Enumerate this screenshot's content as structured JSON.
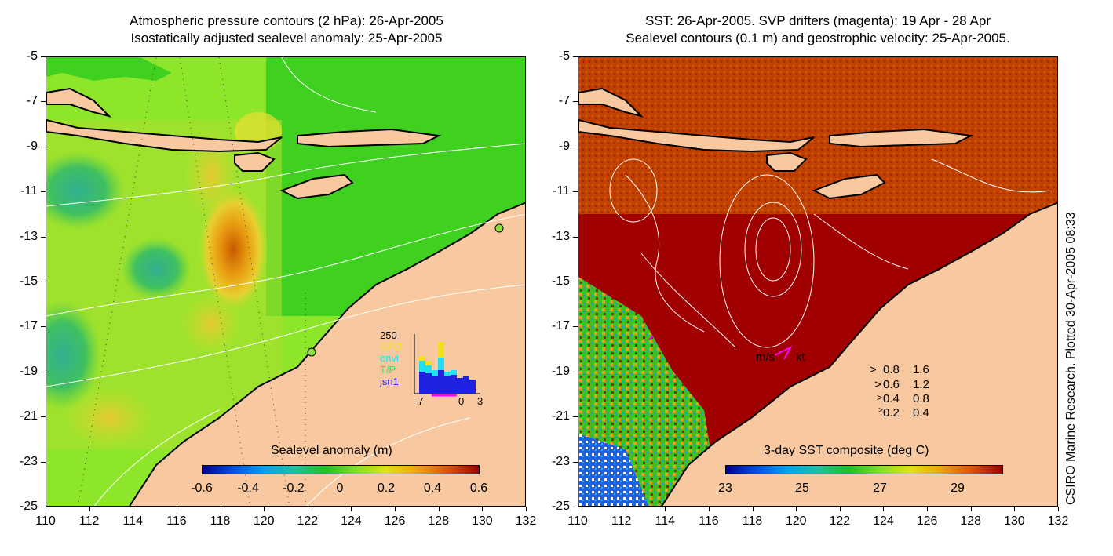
{
  "left": {
    "title_line1": "Atmospheric pressure contours (2 hPa): 26-Apr-2005",
    "title_line2": "Isostatically adjusted sealevel anomaly: 25-Apr-2005",
    "colorbar_title": "Sealevel anomaly (m)",
    "colorbar_labels": [
      "-0.6",
      "-0.4",
      "-0.2",
      "0",
      "0.2",
      "0.4",
      "0.6"
    ],
    "inset": {
      "ymax_label": "250",
      "legend": [
        {
          "label": "GFO",
          "color": "#f0e020"
        },
        {
          "label": "envi",
          "color": "#20e0f0"
        },
        {
          "label": "T/P",
          "color": "#20f060"
        },
        {
          "label": "jsn1",
          "color": "#2020e0"
        }
      ],
      "x_labels": [
        "-7",
        "0",
        "3"
      ]
    }
  },
  "right": {
    "title_line1": "SST: 26-Apr-2005. SVP drifters (magenta): 19 Apr - 28 Apr",
    "title_line2": "Sealevel contours (0.1 m) and geostrophic velocity: 25-Apr-2005.",
    "colorbar_title": "3-day SST composite (deg C)",
    "colorbar_labels": [
      "23",
      "25",
      "27",
      "29"
    ],
    "velocity_legend": {
      "header_ms": "m/s",
      "header_kt": "kt",
      "rows": [
        {
          "ms": "0.8",
          "kt": "1.6"
        },
        {
          "ms": "0.6",
          "kt": "1.2"
        },
        {
          "ms": "0.4",
          "kt": "0.8"
        },
        {
          "ms": "0.2",
          "kt": "0.4"
        }
      ]
    }
  },
  "axes": {
    "y_labels": [
      "-5",
      "-7",
      "-9",
      "-11",
      "-13",
      "-15",
      "-17",
      "-19",
      "-21",
      "-23",
      "-25"
    ],
    "x_labels": [
      "110",
      "112",
      "114",
      "116",
      "118",
      "120",
      "122",
      "124",
      "126",
      "128",
      "130",
      "132"
    ]
  },
  "credit": "CSIRO Marine Research. Plotted 30-Apr-2005 08:33",
  "colors": {
    "land": "#f8c9a0",
    "sst_warm": "#a00000",
    "sla_mid": "#8ee62a"
  }
}
